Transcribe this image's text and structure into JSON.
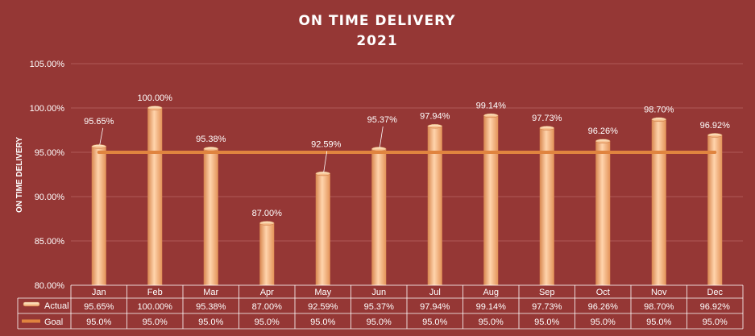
{
  "chart_data": {
    "type": "bar",
    "title": "ON TIME DELIVERY",
    "subtitle": "2021",
    "ylabel": "ON TIME DELIVERY",
    "xlabel": "",
    "ylim": [
      80,
      105
    ],
    "yticks": [
      "80.00%",
      "85.00%",
      "90.00%",
      "95.00%",
      "100.00%",
      "105.00%"
    ],
    "ytick_values": [
      80,
      85,
      90,
      95,
      100,
      105
    ],
    "grid": true,
    "categories": [
      "Jan",
      "Feb",
      "Mar",
      "Apr",
      "May",
      "Jun",
      "Jul",
      "Aug",
      "Sep",
      "Oct",
      "Nov",
      "Dec"
    ],
    "series": [
      {
        "name": "Actual",
        "type": "bar",
        "values": [
          95.65,
          100.0,
          95.38,
          87.0,
          92.59,
          95.37,
          97.94,
          99.14,
          97.73,
          96.26,
          98.7,
          96.92
        ],
        "labels": [
          "95.65%",
          "100.00%",
          "95.38%",
          "87.00%",
          "92.59%",
          "95.37%",
          "97.94%",
          "99.14%",
          "97.73%",
          "96.26%",
          "98.70%",
          "96.92%"
        ],
        "color": "#f7b68a"
      },
      {
        "name": "Goal",
        "type": "line",
        "values": [
          95.0,
          95.0,
          95.0,
          95.0,
          95.0,
          95.0,
          95.0,
          95.0,
          95.0,
          95.0,
          95.0,
          95.0
        ],
        "labels": [
          "95.0%",
          "95.0%",
          "95.0%",
          "95.0%",
          "95.0%",
          "95.0%",
          "95.0%",
          "95.0%",
          "95.0%",
          "95.0%",
          "95.0%",
          "95.0%"
        ],
        "color": "#e0843f"
      }
    ],
    "data_table": true,
    "colors": {
      "background": "#953735",
      "grid": "#b05a58",
      "text": "#ffffff"
    }
  }
}
